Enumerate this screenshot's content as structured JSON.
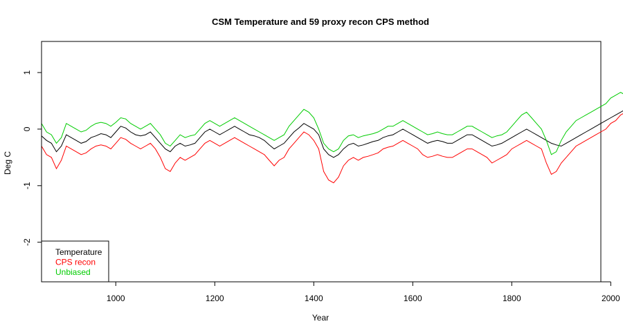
{
  "chart_data": {
    "type": "line",
    "title": "CSM Temperature and 59 proxy recon CPS method",
    "xlabel": "Year",
    "ylabel": "Deg C",
    "xlim": [
      850,
      1980
    ],
    "ylim": [
      -2.7,
      1.55
    ],
    "x_ticks": [
      1000,
      1200,
      1400,
      1600,
      1800,
      2000
    ],
    "y_ticks": [
      -2,
      -1,
      0,
      1
    ],
    "x_tick_labels": [
      "1000",
      "1200",
      "1400",
      "1600",
      "1800",
      "2000"
    ],
    "y_tick_labels": [
      "-2",
      "-1",
      "0",
      "1"
    ],
    "legend_position": "bottom-left",
    "grid": false,
    "series": [
      {
        "name": "Temperature",
        "color": "#000000",
        "x_start": 850,
        "step": 10,
        "values": [
          -0.12,
          -0.2,
          -0.25,
          -0.4,
          -0.3,
          -0.1,
          -0.15,
          -0.2,
          -0.25,
          -0.22,
          -0.15,
          -0.12,
          -0.08,
          -0.1,
          -0.15,
          -0.05,
          0.05,
          0.02,
          -0.05,
          -0.1,
          -0.12,
          -0.1,
          -0.05,
          -0.15,
          -0.25,
          -0.35,
          -0.4,
          -0.3,
          -0.25,
          -0.3,
          -0.28,
          -0.25,
          -0.15,
          -0.05,
          0.0,
          -0.05,
          -0.1,
          -0.05,
          0.0,
          0.05,
          0.0,
          -0.05,
          -0.1,
          -0.12,
          -0.15,
          -0.2,
          -0.28,
          -0.35,
          -0.3,
          -0.25,
          -0.15,
          -0.05,
          0.02,
          0.1,
          0.05,
          0.0,
          -0.1,
          -0.35,
          -0.45,
          -0.5,
          -0.45,
          -0.35,
          -0.28,
          -0.25,
          -0.3,
          -0.28,
          -0.25,
          -0.22,
          -0.2,
          -0.15,
          -0.12,
          -0.1,
          -0.05,
          0.0,
          -0.05,
          -0.1,
          -0.15,
          -0.2,
          -0.25,
          -0.22,
          -0.2,
          -0.22,
          -0.25,
          -0.25,
          -0.2,
          -0.15,
          -0.1,
          -0.1,
          -0.15,
          -0.2,
          -0.25,
          -0.3,
          -0.28,
          -0.25,
          -0.2,
          -0.15,
          -0.1,
          -0.05,
          0.0,
          -0.05,
          -0.1,
          -0.15,
          -0.2,
          -0.25,
          -0.28,
          -0.3,
          -0.25,
          -0.2,
          -0.15,
          -0.1,
          -0.05,
          0.0,
          0.05,
          0.1,
          0.15,
          0.2,
          0.25,
          0.3,
          0.35,
          0.45
        ]
      },
      {
        "name": "CPS recon",
        "color": "#ff0000",
        "x_start": 850,
        "step": 10,
        "values": [
          -0.3,
          -0.45,
          -0.5,
          -0.7,
          -0.55,
          -0.3,
          -0.35,
          -0.4,
          -0.45,
          -0.42,
          -0.35,
          -0.3,
          -0.28,
          -0.3,
          -0.35,
          -0.25,
          -0.15,
          -0.18,
          -0.25,
          -0.3,
          -0.35,
          -0.3,
          -0.25,
          -0.35,
          -0.5,
          -0.7,
          -0.75,
          -0.6,
          -0.5,
          -0.55,
          -0.5,
          -0.45,
          -0.35,
          -0.25,
          -0.2,
          -0.25,
          -0.3,
          -0.25,
          -0.2,
          -0.15,
          -0.2,
          -0.25,
          -0.3,
          -0.35,
          -0.4,
          -0.45,
          -0.55,
          -0.65,
          -0.55,
          -0.5,
          -0.35,
          -0.25,
          -0.15,
          -0.05,
          -0.1,
          -0.2,
          -0.35,
          -0.75,
          -0.9,
          -0.95,
          -0.85,
          -0.65,
          -0.55,
          -0.5,
          -0.55,
          -0.5,
          -0.48,
          -0.45,
          -0.42,
          -0.35,
          -0.32,
          -0.3,
          -0.25,
          -0.2,
          -0.25,
          -0.3,
          -0.35,
          -0.45,
          -0.5,
          -0.48,
          -0.45,
          -0.48,
          -0.5,
          -0.5,
          -0.45,
          -0.4,
          -0.35,
          -0.35,
          -0.4,
          -0.45,
          -0.5,
          -0.6,
          -0.55,
          -0.5,
          -0.45,
          -0.35,
          -0.3,
          -0.25,
          -0.2,
          -0.25,
          -0.3,
          -0.35,
          -0.6,
          -0.8,
          -0.75,
          -0.6,
          -0.5,
          -0.4,
          -0.3,
          -0.25,
          -0.2,
          -0.15,
          -0.1,
          -0.05,
          0.0,
          0.1,
          0.15,
          0.25,
          0.3,
          0.35
        ]
      },
      {
        "name": "Unbiased",
        "color": "#00cc00",
        "x_start": 850,
        "step": 10,
        "values": [
          0.1,
          -0.05,
          -0.1,
          -0.25,
          -0.15,
          0.1,
          0.05,
          0.0,
          -0.05,
          -0.02,
          0.05,
          0.1,
          0.12,
          0.1,
          0.05,
          0.12,
          0.2,
          0.18,
          0.1,
          0.05,
          0.0,
          0.05,
          0.1,
          0.0,
          -0.1,
          -0.25,
          -0.3,
          -0.2,
          -0.1,
          -0.15,
          -0.12,
          -0.1,
          0.0,
          0.1,
          0.15,
          0.1,
          0.05,
          0.1,
          0.15,
          0.2,
          0.15,
          0.1,
          0.05,
          0.0,
          -0.05,
          -0.1,
          -0.15,
          -0.2,
          -0.15,
          -0.1,
          0.05,
          0.15,
          0.25,
          0.35,
          0.3,
          0.2,
          0.0,
          -0.25,
          -0.35,
          -0.4,
          -0.35,
          -0.2,
          -0.12,
          -0.1,
          -0.15,
          -0.12,
          -0.1,
          -0.08,
          -0.05,
          0.0,
          0.05,
          0.05,
          0.1,
          0.15,
          0.1,
          0.05,
          0.0,
          -0.05,
          -0.1,
          -0.08,
          -0.05,
          -0.08,
          -0.1,
          -0.1,
          -0.05,
          0.0,
          0.05,
          0.05,
          0.0,
          -0.05,
          -0.1,
          -0.15,
          -0.12,
          -0.1,
          -0.05,
          0.05,
          0.15,
          0.25,
          0.3,
          0.2,
          0.1,
          0.0,
          -0.2,
          -0.45,
          -0.4,
          -0.2,
          -0.05,
          0.05,
          0.15,
          0.2,
          0.25,
          0.3,
          0.35,
          0.4,
          0.45,
          0.55,
          0.6,
          0.65,
          0.6,
          0.55
        ]
      }
    ]
  }
}
